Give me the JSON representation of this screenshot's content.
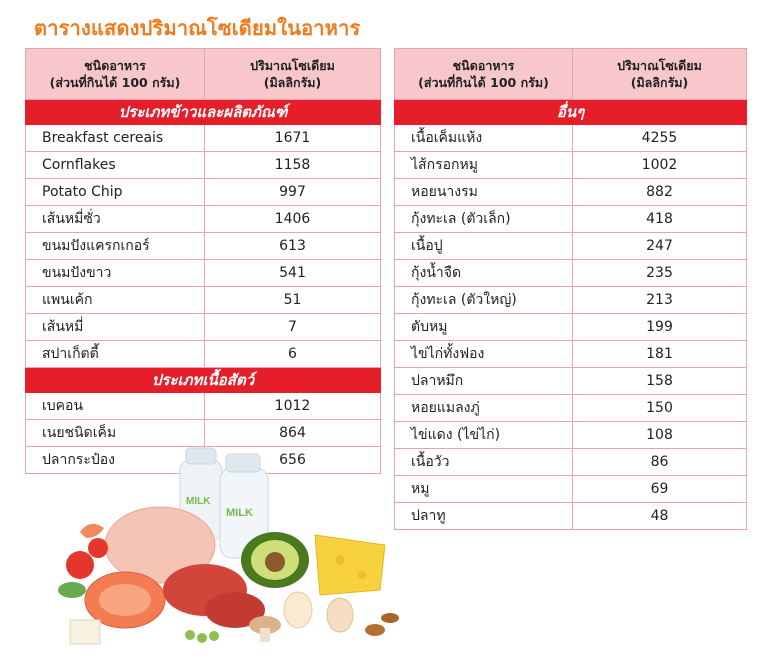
{
  "title": "ตารางแสดงปริมาณโซเดียมในอาหาร",
  "header": {
    "col1_line1": "ชนิดอาหาร",
    "col1_line2": "(ส่วนที่กินได้ 100 กรัม)",
    "col2_line1": "ปริมาณโซเดียม",
    "col2_line2": "(มิลลิกรัม)"
  },
  "left_table": {
    "sections": [
      {
        "title": "ประเภทข้าวและผลิตภัณฑ์",
        "rows": [
          {
            "name": "Breakfast cereais",
            "value": "1671"
          },
          {
            "name": "Cornflakes",
            "value": "1158"
          },
          {
            "name": "Potato Chip",
            "value": "997"
          },
          {
            "name": "เส้นหมี่ซั่ว",
            "value": "1406"
          },
          {
            "name": "ขนมปังแครกเกอร์",
            "value": "613"
          },
          {
            "name": "ขนมปังขาว",
            "value": "541"
          },
          {
            "name": "แพนเค้ก",
            "value": "51"
          },
          {
            "name": "เส้นหมี่",
            "value": "7"
          },
          {
            "name": "สปาเก็ตตี้",
            "value": "6"
          }
        ]
      },
      {
        "title": "ประเภทเนื้อสัตว์",
        "rows": [
          {
            "name": "เบคอน",
            "value": "1012"
          },
          {
            "name": "เนยชนิดเค็ม",
            "value": "864"
          },
          {
            "name": "ปลากระป๋อง",
            "value": "656"
          }
        ]
      }
    ]
  },
  "right_table": {
    "sections": [
      {
        "title": "อื่นๆ",
        "rows": [
          {
            "name": "เนื้อเค็มแห้ง",
            "value": "4255"
          },
          {
            "name": "ไส้กรอกหมู",
            "value": "1002"
          },
          {
            "name": "หอยนางรม",
            "value": "882"
          },
          {
            "name": "กุ้งทะเล (ตัวเล็ก)",
            "value": "418"
          },
          {
            "name": "เนื้อปู",
            "value": "247"
          },
          {
            "name": "กุ้งน้ำจืด",
            "value": "235"
          },
          {
            "name": "กุ้งทะเล (ตัวใหญ่)",
            "value": "213"
          },
          {
            "name": "ตับหมู",
            "value": "199"
          },
          {
            "name": "ไข่ไก่ทั้งฟอง",
            "value": "181"
          },
          {
            "name": "ปลาหมึก",
            "value": "158"
          },
          {
            "name": "หอยแมลงภู่",
            "value": "150"
          },
          {
            "name": "ไข่แดง (ไข่ไก่)",
            "value": "108"
          },
          {
            "name": "เนื้อวัว",
            "value": "86"
          },
          {
            "name": "หมู",
            "value": "69"
          },
          {
            "name": "ปลาทู",
            "value": "48"
          }
        ]
      }
    ]
  },
  "illustration": {
    "milk_label": "MILK"
  },
  "colors": {
    "title": "#f07a1c",
    "header_bg": "#f8c7cb",
    "section_bg": "#e51e2a",
    "border": "#e8a3ad"
  }
}
